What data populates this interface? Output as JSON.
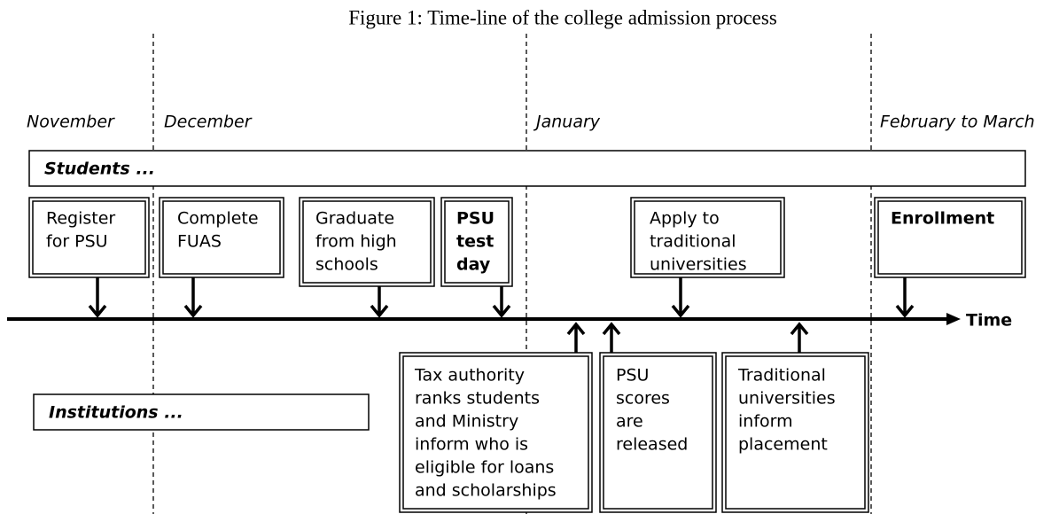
{
  "title": "Figure 1: Time-line of the college admission process",
  "months": [
    "November",
    "December",
    "January",
    "February to March"
  ],
  "students": {
    "label": "Students ...",
    "events": [
      {
        "lines": [
          "Register",
          "for PSU"
        ]
      },
      {
        "lines": [
          "Complete",
          "FUAS"
        ]
      },
      {
        "lines": [
          "Graduate",
          "from high",
          "schools"
        ]
      },
      {
        "lines": [
          "PSU",
          "test",
          "day"
        ]
      },
      {
        "lines": [
          "Apply to",
          "traditional",
          "universities"
        ]
      },
      {
        "lines": [
          "Enrollment"
        ]
      }
    ]
  },
  "institutions": {
    "label": "Institutions ...",
    "events": [
      {
        "lines": [
          "Tax authority",
          "ranks students",
          "and Ministry",
          "inform who is",
          "eligible for loans",
          "and scholarships"
        ]
      },
      {
        "lines": [
          "PSU",
          "scores",
          "are",
          "released"
        ]
      },
      {
        "lines": [
          "Traditional",
          "universities",
          "inform",
          "placement"
        ]
      }
    ]
  },
  "time_label": "Time"
}
